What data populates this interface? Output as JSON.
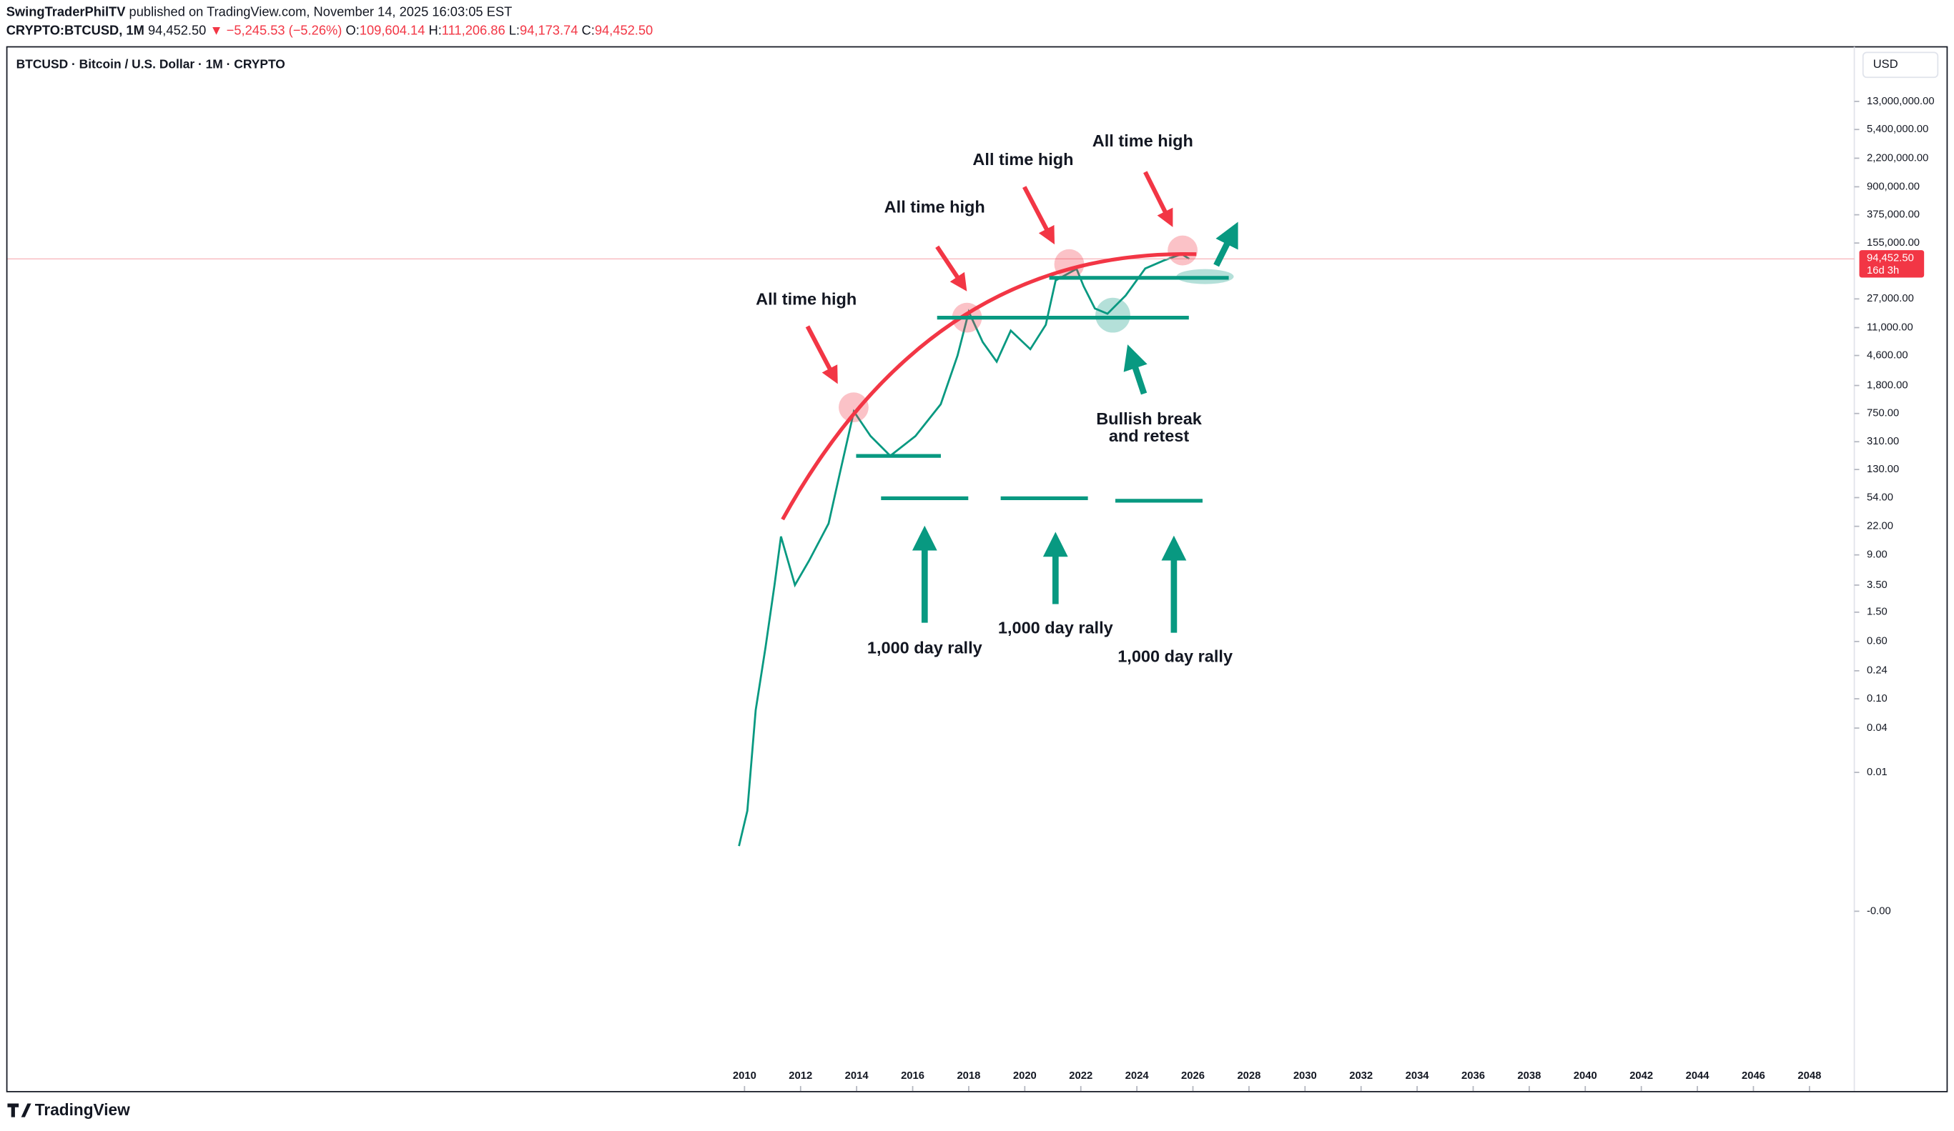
{
  "header": {
    "publisher": "SwingTraderPhilTV",
    "published": "published on TradingView.com, November 14, 2025 16:03:05 EST",
    "symbol": "CRYPTO:BTCUSD, 1M",
    "last": "94,452.50",
    "change": "▼ −5,245.53 (−5.26%)",
    "ohlc": [
      {
        "label": "O:",
        "value": "109,604.14"
      },
      {
        "label": "H:",
        "value": "111,206.86"
      },
      {
        "label": "L:",
        "value": "94,173.74"
      },
      {
        "label": "C:",
        "value": "94,452.50"
      }
    ]
  },
  "chart_data": {
    "type": "line",
    "title": "BTCUSD · Bitcoin / U.S. Dollar · 1M · CRYPTO",
    "currency": "USD",
    "log_scale": true,
    "grid": false,
    "color": "#089981",
    "x": [
      2009.8,
      2010.1,
      2010.4,
      2010.75,
      2011.07,
      2011.3,
      2011.8,
      2012.3,
      2013.0,
      2013.4,
      2013.9,
      2014.5,
      2015.2,
      2016.1,
      2017.0,
      2017.6,
      2018.0,
      2018.5,
      2019.0,
      2019.5,
      2020.2,
      2020.75,
      2021.1,
      2021.85,
      2022.1,
      2022.5,
      2022.95,
      2023.6,
      2024.3,
      2024.97,
      2025.6,
      2025.87
    ],
    "values": [
      0.001,
      0.003,
      0.07,
      0.5,
      3.5,
      16,
      3.5,
      7.5,
      24,
      115,
      800,
      370,
      200,
      370,
      1000,
      4600,
      18000,
      7000,
      3800,
      10000,
      5600,
      12000,
      48000,
      69000,
      40000,
      20000,
      17000,
      30000,
      70000,
      90000,
      110000,
      94452.5
    ],
    "xlim": [
      1983.7,
      2049.6
    ],
    "xticks": [
      2010,
      2012,
      2014,
      2016,
      2018,
      2020,
      2022,
      2024,
      2026,
      2028,
      2030,
      2032,
      2034,
      2036,
      2038,
      2040,
      2042,
      2044,
      2046,
      2048
    ],
    "ylim": [
      65000000,
      4.7e-07
    ],
    "yticks": [
      {
        "value": 13000000,
        "label": "13,000,000.00"
      },
      {
        "value": 5400000,
        "label": "5,400,000.00"
      },
      {
        "value": 2200000,
        "label": "2,200,000.00"
      },
      {
        "value": 900000,
        "label": "900,000.00"
      },
      {
        "value": 375000,
        "label": "375,000.00"
      },
      {
        "value": 155000,
        "label": "155,000.00"
      },
      {
        "value": 27000,
        "label": "27,000.00"
      },
      {
        "value": 11000,
        "label": "11,000.00"
      },
      {
        "value": 4600,
        "label": "4,600.00"
      },
      {
        "value": 1800,
        "label": "1,800.00"
      },
      {
        "value": 750,
        "label": "750.00"
      },
      {
        "value": 310,
        "label": "310.00"
      },
      {
        "value": 130,
        "label": "130.00"
      },
      {
        "value": 54,
        "label": "54.00"
      },
      {
        "value": 22,
        "label": "22.00"
      },
      {
        "value": 9,
        "label": "9.00"
      },
      {
        "value": 3.5,
        "label": "3.50"
      },
      {
        "value": 1.5,
        "label": "1.50"
      },
      {
        "value": 0.6,
        "label": "0.60"
      },
      {
        "value": 0.24,
        "label": "0.24"
      },
      {
        "value": 0.1,
        "label": "0.10"
      },
      {
        "value": 0.04,
        "label": "0.04"
      },
      {
        "value": 0.01,
        "label": "0.01"
      },
      {
        "value": 0.00013,
        "label": "-0.00"
      }
    ],
    "last_price": {
      "value": 94452.5,
      "label": "94,452.50"
    },
    "countdown": "16d 3h",
    "annotations": [
      "All time high",
      "All time high",
      "All time high",
      "All time high",
      "Bullish break",
      "and retest",
      "1,000 day rally",
      "1,000 day rally",
      "1,000 day rally"
    ]
  },
  "footer": {
    "brand": "TradingView"
  }
}
